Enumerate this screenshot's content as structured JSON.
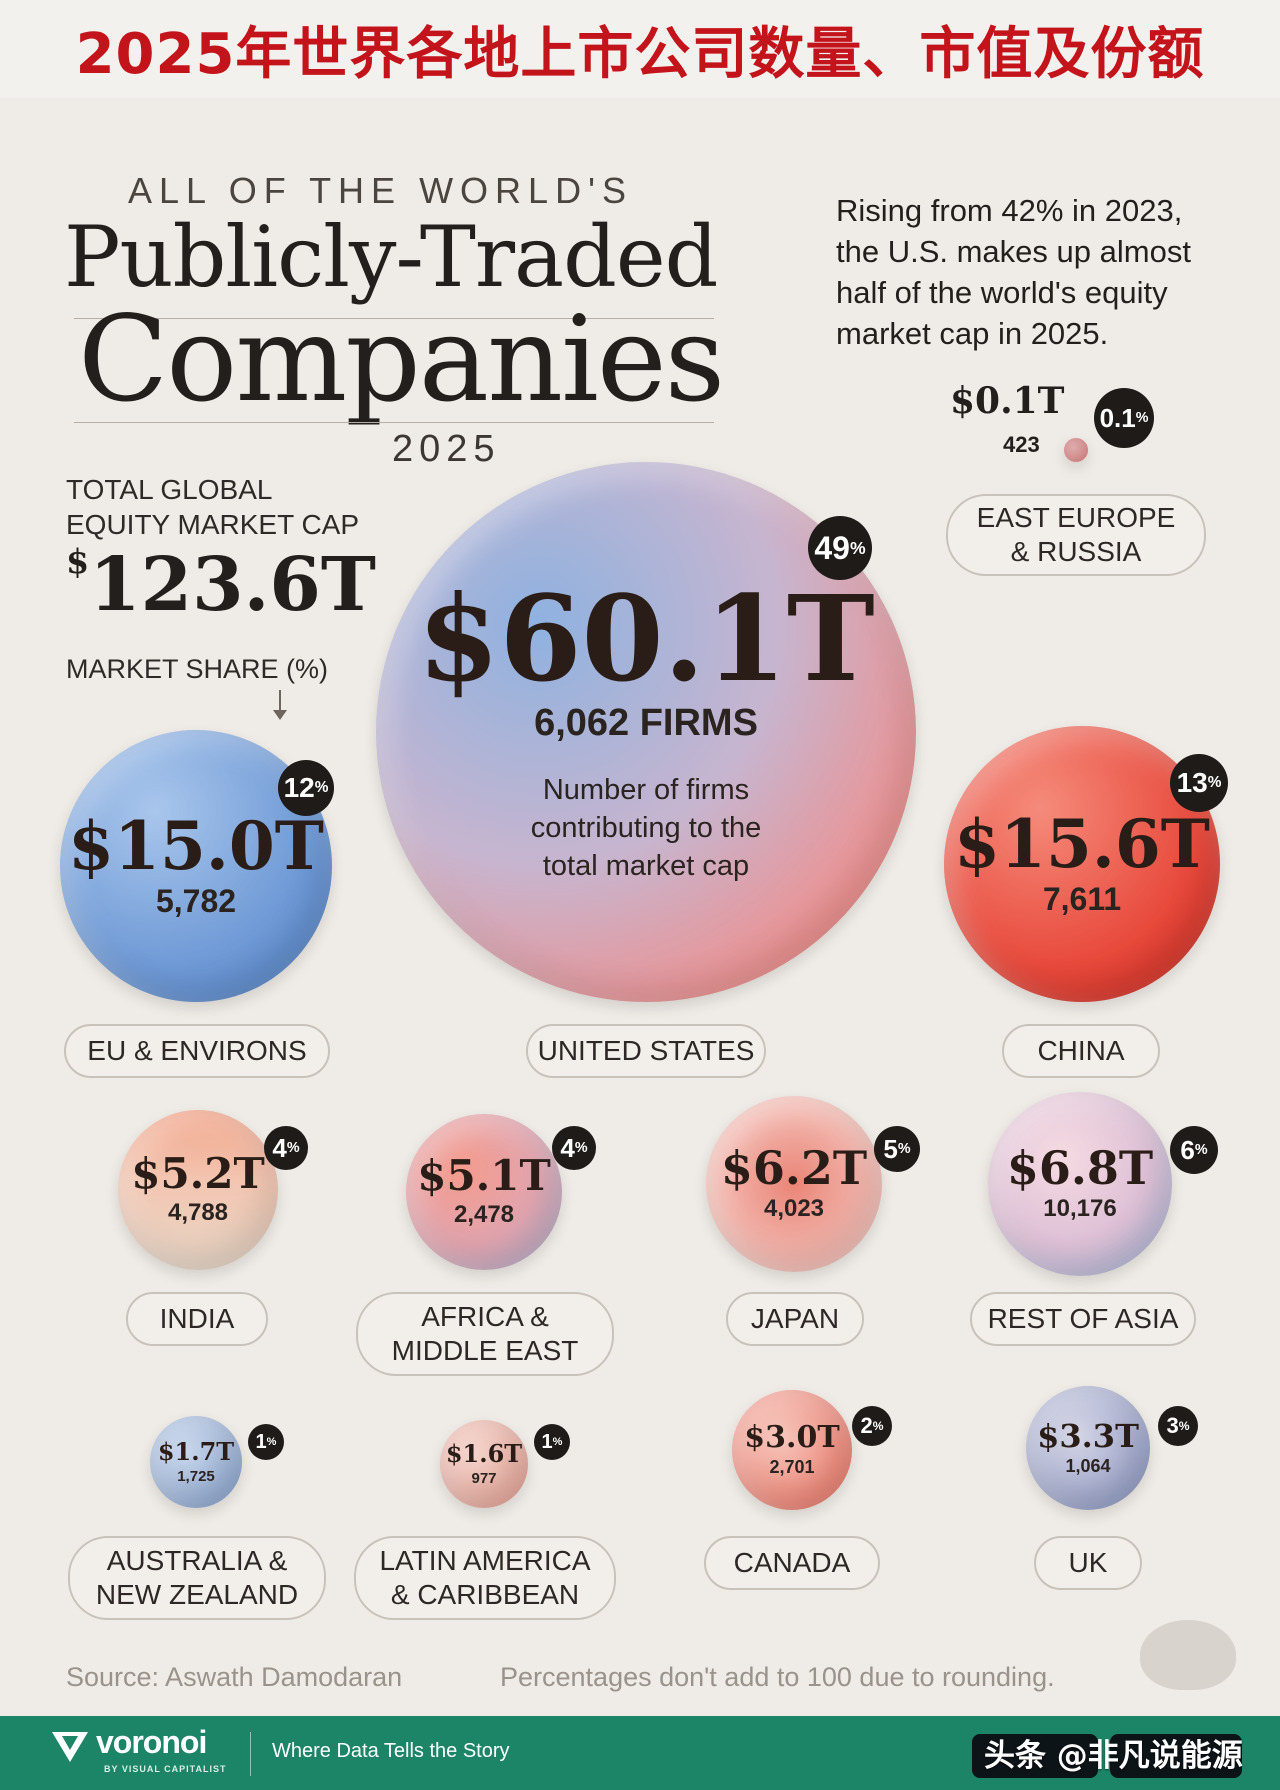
{
  "header": {
    "title": "2025年世界各地上市公司数量、市值及份额"
  },
  "heading": {
    "kicker": "ALL OF THE WORLD'S",
    "line1": "Publicly-Traded",
    "line2": "Companies",
    "year": "2025"
  },
  "total": {
    "label_line1": "TOTAL GLOBAL",
    "label_line2": "EQUITY MARKET CAP",
    "value": "123.6T",
    "currency": "$"
  },
  "share_label": "MARKET SHARE (%)",
  "note": "Rising from 42% in 2023, the U.S. makes up almost half of the world's equity market cap in 2025.",
  "us_explainer": "Number of firms contributing to the total market cap",
  "source": "Source: Aswath Damodaran",
  "caveat": "Percentages don't add to 100 due to rounding.",
  "footer": {
    "brand": "voronoi",
    "brand_sub": "BY VISUAL CAPITALIST",
    "tagline": "Where Data Tells the Story",
    "watermark": "头条 @非凡说能源"
  },
  "colors": {
    "title_red": "#c4141b",
    "footer_green": "#1d8567",
    "background": "#efebe6"
  },
  "chart_data": {
    "type": "bubble",
    "value_unit": "USD trillions (market cap)",
    "regions": [
      {
        "name": "UNITED STATES",
        "market_cap": "$60.1T",
        "value": 60.1,
        "firms": "6,062 FIRMS",
        "firm_count": 6062,
        "share_pct": 49,
        "pct_label": "49"
      },
      {
        "name": "CHINA",
        "market_cap": "$15.6T",
        "value": 15.6,
        "firms": "7,611",
        "firm_count": 7611,
        "share_pct": 13,
        "pct_label": "13"
      },
      {
        "name": "EU & ENVIRONS",
        "market_cap": "$15.0T",
        "value": 15.0,
        "firms": "5,782",
        "firm_count": 5782,
        "share_pct": 12,
        "pct_label": "12"
      },
      {
        "name": "REST OF ASIA",
        "market_cap": "$6.8T",
        "value": 6.8,
        "firms": "10,176",
        "firm_count": 10176,
        "share_pct": 6,
        "pct_label": "6"
      },
      {
        "name": "JAPAN",
        "market_cap": "$6.2T",
        "value": 6.2,
        "firms": "4,023",
        "firm_count": 4023,
        "share_pct": 5,
        "pct_label": "5"
      },
      {
        "name": "INDIA",
        "market_cap": "$5.2T",
        "value": 5.2,
        "firms": "4,788",
        "firm_count": 4788,
        "share_pct": 4,
        "pct_label": "4"
      },
      {
        "name": "AFRICA &\nMIDDLE EAST",
        "market_cap": "$5.1T",
        "value": 5.1,
        "firms": "2,478",
        "firm_count": 2478,
        "share_pct": 4,
        "pct_label": "4"
      },
      {
        "name": "UK",
        "market_cap": "$3.3T",
        "value": 3.3,
        "firms": "1,064",
        "firm_count": 1064,
        "share_pct": 3,
        "pct_label": "3"
      },
      {
        "name": "CANADA",
        "market_cap": "$3.0T",
        "value": 3.0,
        "firms": "2,701",
        "firm_count": 2701,
        "share_pct": 2,
        "pct_label": "2"
      },
      {
        "name": "AUSTRALIA &\nNEW ZEALAND",
        "market_cap": "$1.7T",
        "value": 1.7,
        "firms": "1,725",
        "firm_count": 1725,
        "share_pct": 1,
        "pct_label": "1"
      },
      {
        "name": "LATIN AMERICA\n& CARIBBEAN",
        "market_cap": "$1.6T",
        "value": 1.6,
        "firms": "977",
        "firm_count": 977,
        "share_pct": 1,
        "pct_label": "1"
      },
      {
        "name": "EAST EUROPE\n& RUSSIA",
        "market_cap": "$0.1T",
        "value": 0.1,
        "firms": "423",
        "firm_count": 423,
        "share_pct": 0.1,
        "pct_label": "0.1"
      }
    ]
  }
}
